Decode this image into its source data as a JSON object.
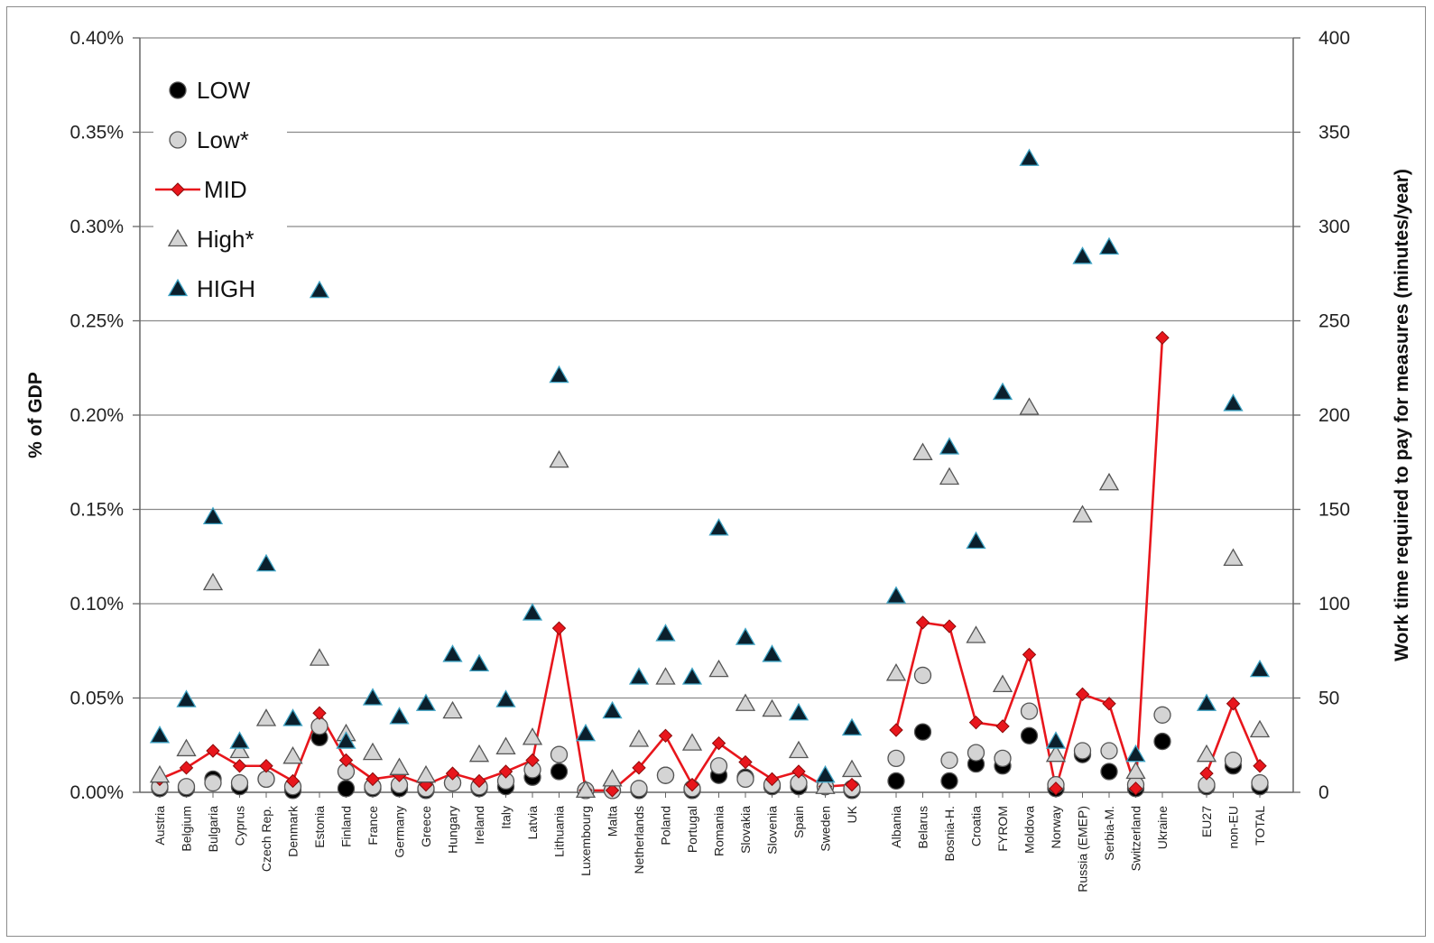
{
  "chart_data": {
    "type": "scatter",
    "ylabel": "% of GDP",
    "y2label": "Work time required to pay for measures (minutes/year)",
    "ylim": [
      0,
      0.4
    ],
    "y2lim": [
      0,
      400
    ],
    "y_ticks": [
      "0.00%",
      "0.05%",
      "0.10%",
      "0.15%",
      "0.20%",
      "0.25%",
      "0.30%",
      "0.35%",
      "0.40%"
    ],
    "y2_ticks": [
      "0",
      "50",
      "100",
      "150",
      "200",
      "250",
      "300",
      "350",
      "400"
    ],
    "grid": true,
    "legend_position": "top-left",
    "categories": [
      "Austria",
      "Belgium",
      "Bulgaria",
      "Cyprus",
      "Czech Rep.",
      "Denmark",
      "Estonia",
      "Finland",
      "France",
      "Germany",
      "Greece",
      "Hungary",
      "Ireland",
      "Italy",
      "Latvia",
      "Lithuania",
      "Luxembourg",
      "Malta",
      "Netherlands",
      "Poland",
      "Portugal",
      "Romania",
      "Slovakia",
      "Slovenia",
      "Spain",
      "Sweden",
      "UK",
      "Albania",
      "Belarus",
      "Bosnia-H.",
      "Croatia",
      "FYROM",
      "Moldova",
      "Norway",
      "Russia (EMEP)",
      "Serbia-M.",
      "Switzerland",
      "Ukraine",
      "EU27",
      "non-EU",
      "TOTAL"
    ],
    "series": [
      {
        "name": "LOW",
        "marker": "circle",
        "fill": "#000000",
        "values": [
          0.002,
          0.002,
          0.007,
          0.003,
          0.007,
          0.001,
          0.029,
          0.002,
          0.002,
          0.002,
          0.001,
          0.005,
          0.002,
          0.003,
          0.008,
          0.011,
          0.001,
          0.001,
          0.001,
          0.009,
          0.001,
          0.009,
          0.008,
          0.003,
          0.003,
          0.003,
          0.001,
          0.006,
          0.032,
          0.006,
          0.015,
          0.014,
          0.03,
          0.002,
          0.02,
          0.011,
          0.002,
          0.027,
          0.003,
          0.014,
          0.003
        ]
      },
      {
        "name": "Low*",
        "marker": "circle",
        "fill": "#d4d4d4",
        "values": [
          0.003,
          0.003,
          0.005,
          0.005,
          0.007,
          0.003,
          0.035,
          0.011,
          0.003,
          0.004,
          0.002,
          0.005,
          0.003,
          0.006,
          0.012,
          0.02,
          0.001,
          0.001,
          0.002,
          0.009,
          0.002,
          0.014,
          0.007,
          0.004,
          0.005,
          0.003,
          0.002,
          0.018,
          0.062,
          0.017,
          0.021,
          0.018,
          0.043,
          0.004,
          0.022,
          0.022,
          0.004,
          0.041,
          0.004,
          0.017,
          0.005
        ]
      },
      {
        "name": "MID",
        "marker": "diamond",
        "fill": "#e8161c",
        "line": true,
        "values": [
          0.007,
          0.013,
          0.022,
          0.014,
          0.014,
          0.006,
          0.042,
          0.017,
          0.007,
          0.009,
          0.004,
          0.01,
          0.006,
          0.011,
          0.017,
          0.087,
          0.001,
          0.001,
          0.013,
          0.03,
          0.004,
          0.026,
          0.016,
          0.007,
          0.011,
          0.003,
          0.004,
          0.033,
          0.09,
          0.088,
          0.037,
          0.035,
          0.073,
          0.002,
          0.052,
          0.047,
          0.002,
          0.241,
          0.01,
          0.047,
          0.014
        ]
      },
      {
        "name": "High*",
        "marker": "triangle",
        "fill": "#d4d4d4",
        "values": [
          0.009,
          0.023,
          0.111,
          0.022,
          0.039,
          0.019,
          0.071,
          0.031,
          0.021,
          0.013,
          0.009,
          0.043,
          0.02,
          0.024,
          0.029,
          0.176,
          0.001,
          0.007,
          0.028,
          0.061,
          0.026,
          0.065,
          0.047,
          0.044,
          0.022,
          0.003,
          0.012,
          0.063,
          0.18,
          0.167,
          0.083,
          0.057,
          0.204,
          0.02,
          0.147,
          0.164,
          0.011,
          null,
          0.02,
          0.124,
          0.033
        ]
      },
      {
        "name": "HIGH",
        "marker": "triangle",
        "fill": "#0b1f2c",
        "values": [
          0.03,
          0.049,
          0.146,
          0.027,
          0.121,
          0.039,
          0.266,
          0.027,
          0.05,
          0.04,
          0.047,
          0.073,
          0.068,
          0.049,
          0.095,
          0.221,
          0.031,
          0.043,
          0.061,
          0.084,
          0.061,
          0.14,
          0.082,
          0.073,
          0.042,
          0.009,
          0.034,
          0.104,
          null,
          0.183,
          0.133,
          0.212,
          0.336,
          0.027,
          0.284,
          0.289,
          0.02,
          null,
          0.047,
          0.206,
          0.065
        ]
      }
    ]
  }
}
